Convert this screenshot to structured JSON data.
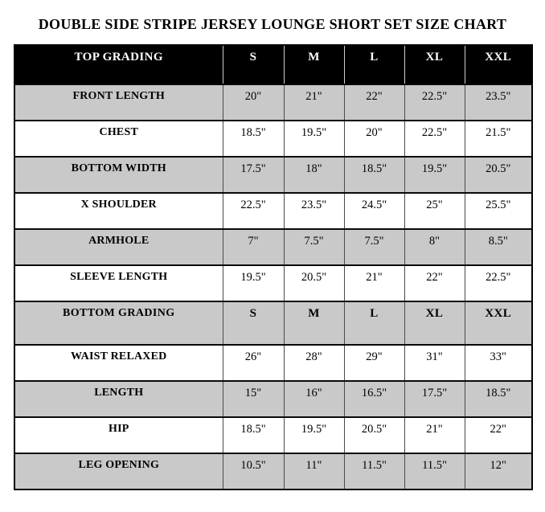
{
  "title": "DOUBLE SIDE STRIPE JERSEY LOUNGE SHORT SET SIZE CHART",
  "colors": {
    "header_bg": "#000000",
    "row_bg": "#ffffff",
    "row_alt_bg": "#c9c9c9",
    "border": "#000000"
  },
  "chart_data": {
    "type": "table",
    "title": "DOUBLE SIDE STRIPE JERSEY LOUNGE SHORT SET SIZE CHART",
    "size_columns": [
      "S",
      "M",
      "L",
      "XL",
      "XXL"
    ],
    "header_row": {
      "label": "TOP GRADING",
      "values": [
        "S",
        "M",
        "L",
        "XL",
        "XXL"
      ]
    },
    "rows": [
      {
        "label": "FRONT LENGTH",
        "values": [
          "20\"",
          "21\"",
          "22\"",
          "22.5\"",
          "23.5\""
        ]
      },
      {
        "label": "CHEST",
        "values": [
          "18.5\"",
          "19.5\"",
          "20\"",
          "22.5\"",
          "21.5\""
        ]
      },
      {
        "label": "BOTTOM WIDTH",
        "values": [
          "17.5\"",
          "18\"",
          "18.5\"",
          "19.5\"",
          "20.5\""
        ]
      },
      {
        "label": "X SHOULDER",
        "values": [
          "22.5\"",
          "23.5\"",
          "24.5\"",
          "25\"",
          "25.5\""
        ]
      },
      {
        "label": "ARMHOLE",
        "values": [
          "7\"",
          "7.5\"",
          "7.5\"",
          "8\"",
          "8.5\""
        ]
      },
      {
        "label": "SLEEVE LENGTH",
        "values": [
          "19.5\"",
          "20.5\"",
          "21\"",
          "22\"",
          "22.5\""
        ]
      },
      {
        "label": "BOTTOM GRADING",
        "values": [
          "S",
          "M",
          "L",
          "XL",
          "XXL"
        ],
        "is_section_header": true
      },
      {
        "label": "WAIST RELAXED",
        "values": [
          "26\"",
          "28\"",
          "29\"",
          "31\"",
          "33\""
        ]
      },
      {
        "label": "LENGTH",
        "values": [
          "15\"",
          "16\"",
          "16.5\"",
          "17.5\"",
          "18.5\""
        ]
      },
      {
        "label": "HIP",
        "values": [
          "18.5\"",
          "19.5\"",
          "20.5\"",
          "21\"",
          "22\""
        ]
      },
      {
        "label": "LEG OPENING",
        "values": [
          "10.5\"",
          "11\"",
          "11.5\"",
          "11.5\"",
          "12\""
        ]
      }
    ]
  }
}
